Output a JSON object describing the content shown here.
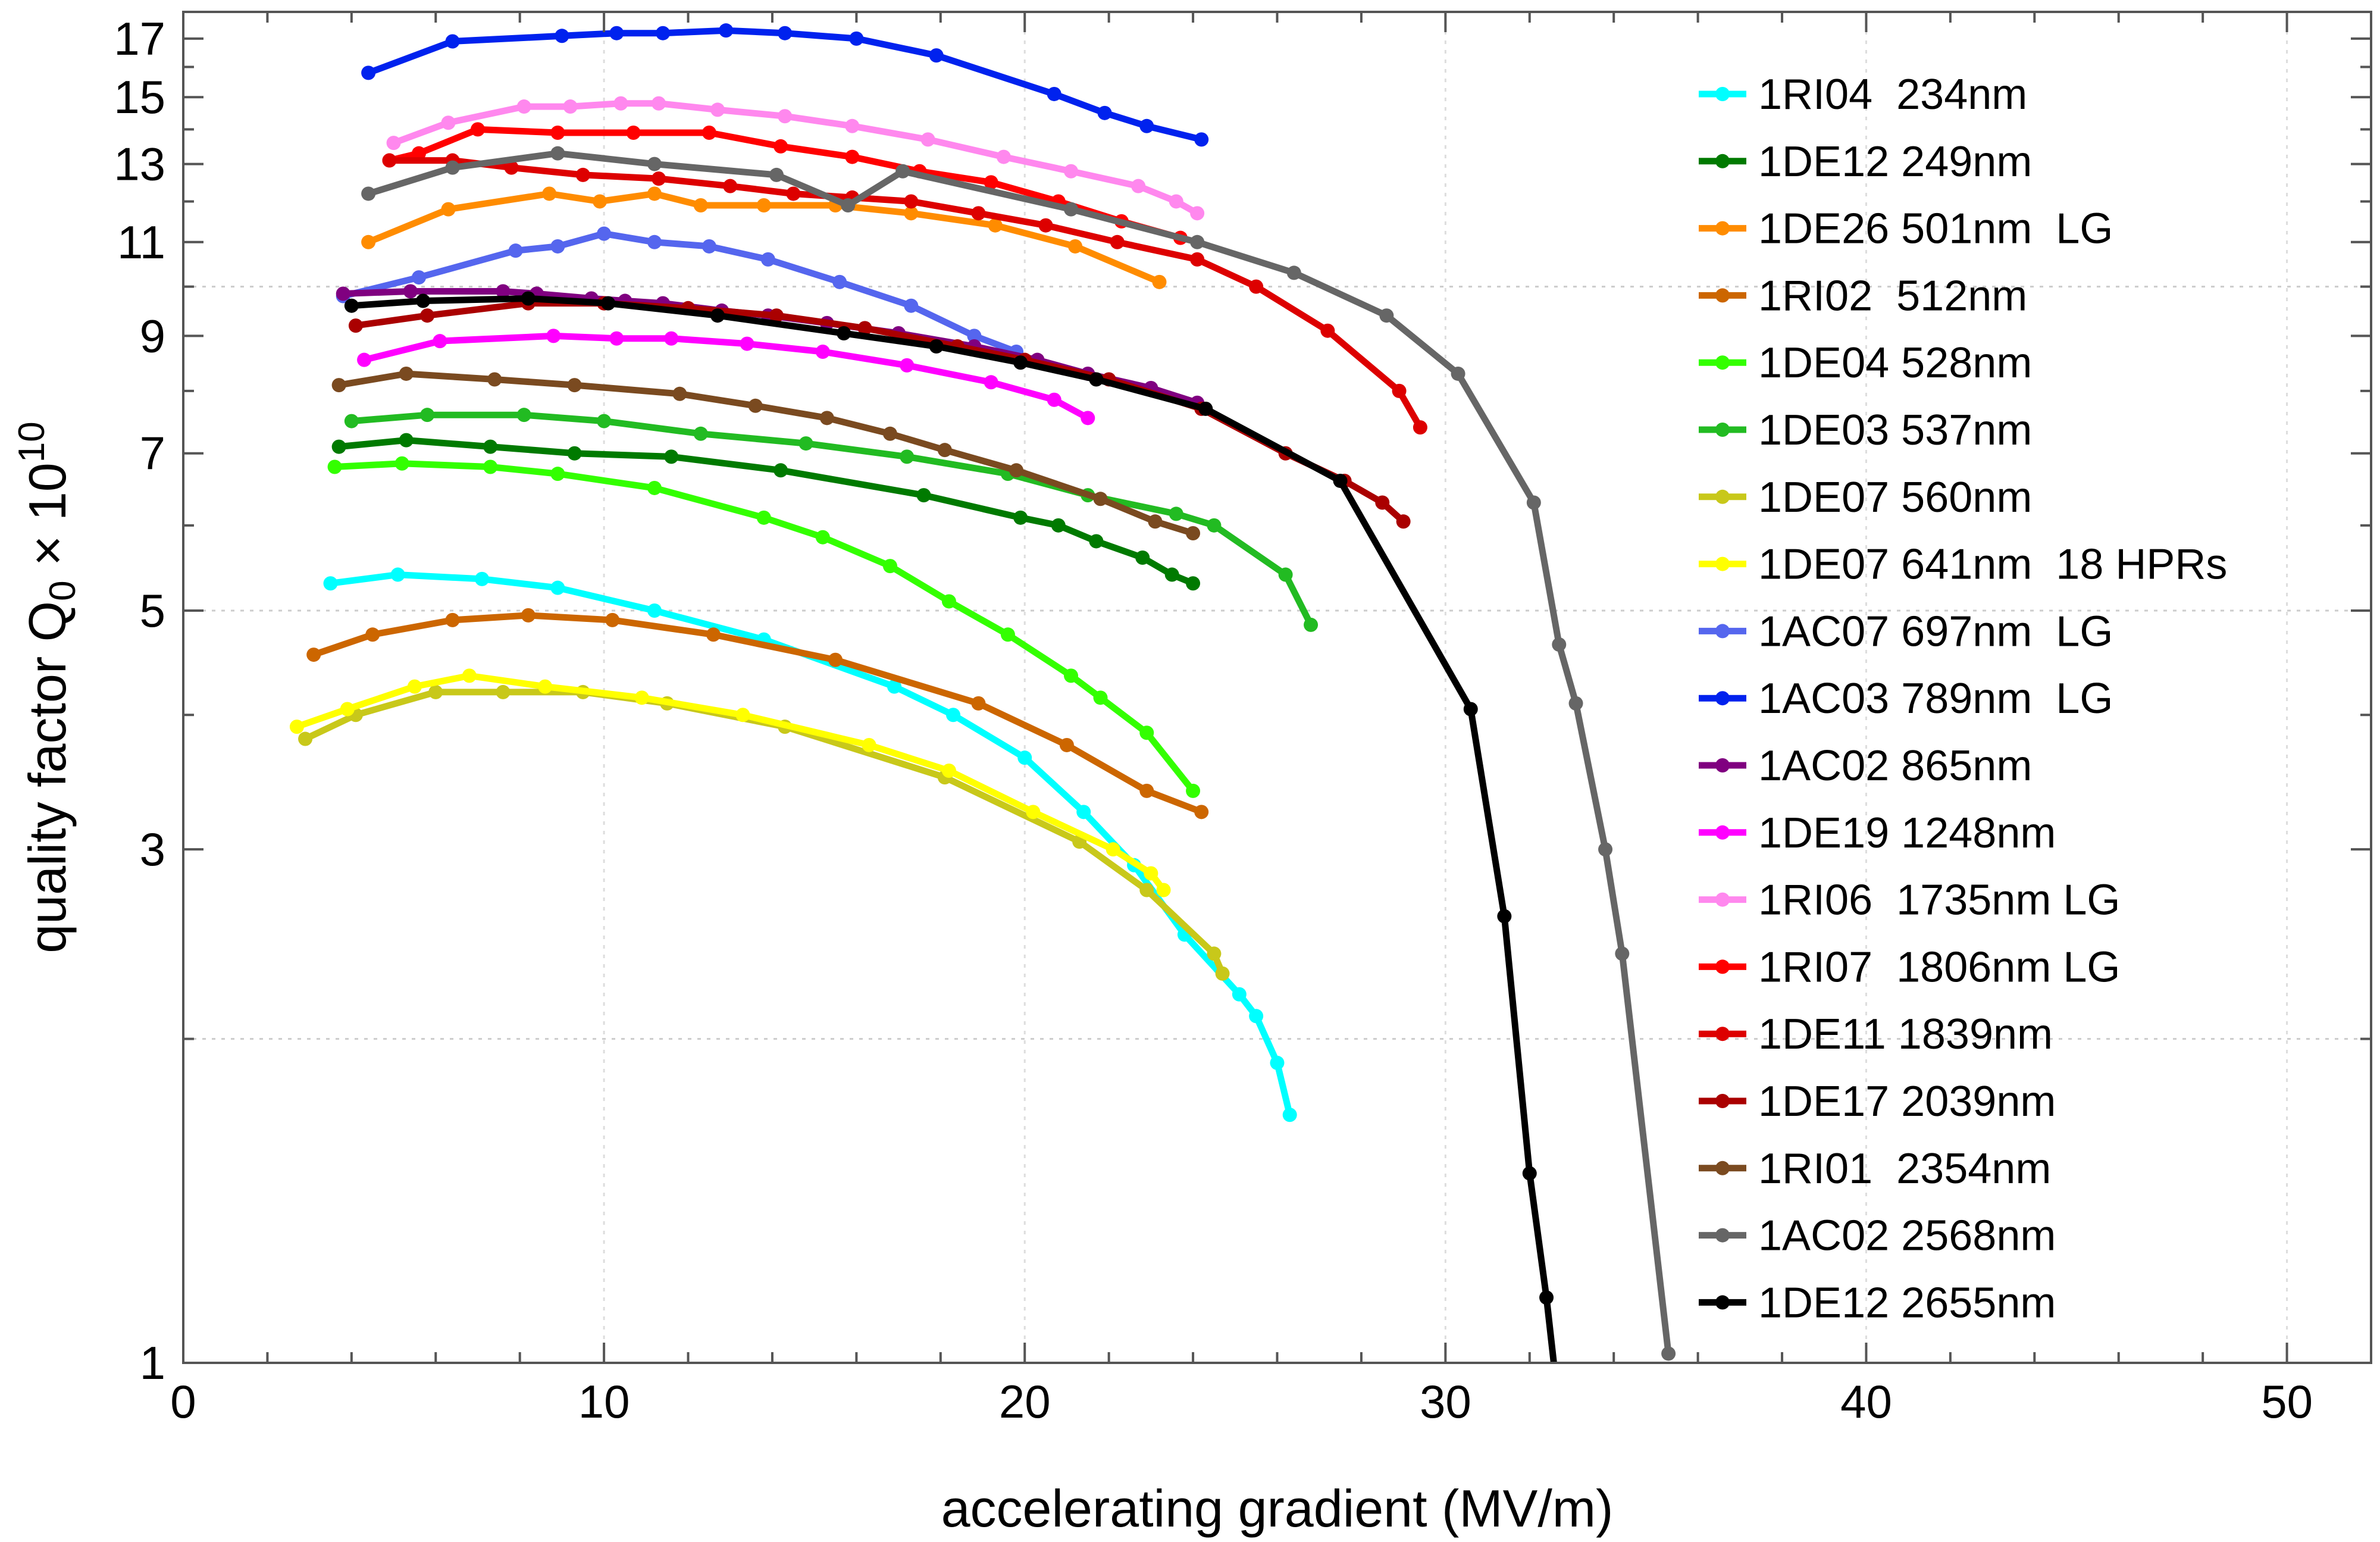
{
  "chart_data": {
    "type": "line",
    "xlabel": "accelerating gradient (MV/m)",
    "ylabel": {
      "prefix": "quality factor Q",
      "subscript": "0",
      "times": " × 10",
      "superscript": "10"
    },
    "x_scale": "linear",
    "y_scale": "log",
    "xlim": [
      0,
      52
    ],
    "ylim": [
      1,
      18
    ],
    "x_ticks": [
      0,
      10,
      20,
      30,
      40,
      50
    ],
    "x_tick_labels": [
      "0",
      "10",
      "20",
      "30",
      "40",
      "50"
    ],
    "y_ticks": [
      1,
      3,
      5,
      7,
      9,
      11,
      13,
      15,
      17
    ],
    "y_tick_labels": [
      "1",
      "3",
      "5",
      "7",
      "9",
      "11",
      "13",
      "15",
      "17"
    ],
    "grid": "dotted at y = 2, 5, 10",
    "legend_position": "top-right",
    "series": [
      {
        "name": "1RI04  234nm",
        "color": "#00ffff",
        "x": [
          3.5,
          5.1,
          7.1,
          8.9,
          11.2,
          13.8,
          16.9,
          18.3,
          20.0,
          21.4,
          22.6,
          23.8,
          25.1,
          25.5,
          26.0,
          26.3
        ],
        "y": [
          5.3,
          5.4,
          5.35,
          5.25,
          5.0,
          4.7,
          4.25,
          4.0,
          3.65,
          3.25,
          2.9,
          2.5,
          2.2,
          2.1,
          1.9,
          1.7
        ]
      },
      {
        "name": "1DE12 249nm",
        "color": "#007a00",
        "x": [
          3.7,
          5.3,
          7.3,
          9.3,
          11.6,
          14.2,
          17.6,
          19.9,
          20.8,
          21.7,
          22.8,
          23.5,
          24.0
        ],
        "y": [
          7.1,
          7.2,
          7.1,
          7.0,
          6.95,
          6.75,
          6.4,
          6.1,
          6.0,
          5.8,
          5.6,
          5.4,
          5.3
        ]
      },
      {
        "name": "1DE26 501nm  LG",
        "color": "#ff8c00",
        "x": [
          4.4,
          6.3,
          8.7,
          9.9,
          11.2,
          12.3,
          13.8,
          15.5,
          17.3,
          19.3,
          21.2,
          23.2
        ],
        "y": [
          11.0,
          11.8,
          12.2,
          12.0,
          12.2,
          11.9,
          11.9,
          11.9,
          11.7,
          11.4,
          10.9,
          10.1
        ]
      },
      {
        "name": "1RI02  512nm",
        "color": "#cc6600",
        "x": [
          3.1,
          4.5,
          6.4,
          8.2,
          10.2,
          12.6,
          15.5,
          18.9,
          21.0,
          22.9,
          24.2
        ],
        "y": [
          4.55,
          4.75,
          4.9,
          4.95,
          4.9,
          4.75,
          4.5,
          4.1,
          3.75,
          3.4,
          3.25
        ]
      },
      {
        "name": "1DE04 528nm",
        "color": "#33ff00",
        "x": [
          3.6,
          5.2,
          7.3,
          8.9,
          11.2,
          13.8,
          15.2,
          16.8,
          18.2,
          19.6,
          21.1,
          21.8,
          22.9,
          24.0
        ],
        "y": [
          6.8,
          6.85,
          6.8,
          6.7,
          6.5,
          6.1,
          5.85,
          5.5,
          5.1,
          4.75,
          4.35,
          4.15,
          3.85,
          3.4
        ]
      },
      {
        "name": "1DE03 537nm",
        "color": "#22bb22",
        "x": [
          4.0,
          5.8,
          8.1,
          10.0,
          12.3,
          14.8,
          17.2,
          19.6,
          21.5,
          23.6,
          24.5,
          26.2,
          26.8
        ],
        "y": [
          7.5,
          7.6,
          7.6,
          7.5,
          7.3,
          7.15,
          6.95,
          6.7,
          6.4,
          6.15,
          6.0,
          5.4,
          4.85
        ]
      },
      {
        "name": "1DE07 560nm",
        "color": "#c8c81a",
        "x": [
          2.9,
          4.1,
          6.0,
          7.6,
          9.5,
          11.5,
          14.3,
          18.1,
          21.3,
          22.9,
          24.5,
          24.7
        ],
        "y": [
          3.8,
          4.0,
          4.2,
          4.2,
          4.2,
          4.1,
          3.9,
          3.5,
          3.05,
          2.75,
          2.4,
          2.3
        ]
      },
      {
        "name": "1DE07 641nm  18 HPRs",
        "color": "#ffff00",
        "x": [
          2.7,
          3.9,
          5.5,
          6.8,
          8.6,
          10.9,
          13.3,
          16.3,
          18.2,
          20.2,
          22.1,
          23.0,
          23.3
        ],
        "y": [
          3.9,
          4.05,
          4.25,
          4.35,
          4.25,
          4.15,
          4.0,
          3.75,
          3.55,
          3.25,
          3.0,
          2.85,
          2.75
        ]
      },
      {
        "name": "1AC07 697nm  LG",
        "color": "#5566ee",
        "x": [
          3.8,
          5.6,
          7.9,
          8.9,
          10.0,
          11.2,
          12.5,
          13.9,
          15.6,
          17.3,
          18.8,
          19.8
        ],
        "y": [
          9.8,
          10.2,
          10.8,
          10.9,
          11.2,
          11.0,
          10.9,
          10.6,
          10.1,
          9.6,
          9.0,
          8.7
        ]
      },
      {
        "name": "1AC03 789nm  LG",
        "color": "#0022ee",
        "x": [
          4.4,
          6.4,
          9.0,
          10.3,
          11.4,
          12.9,
          14.3,
          16.0,
          17.9,
          20.7,
          21.9,
          22.9,
          24.2
        ],
        "y": [
          15.8,
          16.9,
          17.1,
          17.2,
          17.2,
          17.3,
          17.2,
          17.0,
          16.4,
          15.1,
          14.5,
          14.1,
          13.7
        ]
      },
      {
        "name": "1AC02 865nm",
        "color": "#800080",
        "x": [
          3.8,
          5.4,
          7.6,
          8.4,
          9.7,
          10.5,
          11.4,
          12.8,
          13.9,
          15.3,
          17.0,
          18.8,
          20.3,
          21.5,
          23.0,
          24.1
        ],
        "y": [
          9.85,
          9.9,
          9.9,
          9.85,
          9.75,
          9.7,
          9.65,
          9.5,
          9.4,
          9.25,
          9.05,
          8.8,
          8.55,
          8.3,
          8.05,
          7.8
        ]
      },
      {
        "name": "1DE19 1248nm",
        "color": "#ff00ff",
        "x": [
          4.3,
          6.1,
          8.8,
          10.3,
          11.6,
          13.4,
          15.2,
          17.2,
          19.2,
          20.7,
          21.5
        ],
        "y": [
          8.55,
          8.9,
          9.0,
          8.95,
          8.95,
          8.85,
          8.7,
          8.45,
          8.15,
          7.85,
          7.55
        ]
      },
      {
        "name": "1RI06  1735nm LG",
        "color": "#ff88ee",
        "x": [
          5.0,
          6.3,
          8.1,
          9.2,
          10.4,
          11.3,
          12.7,
          14.3,
          15.9,
          17.7,
          19.5,
          21.1,
          22.7,
          23.6,
          24.1
        ],
        "y": [
          13.6,
          14.2,
          14.7,
          14.7,
          14.8,
          14.8,
          14.6,
          14.4,
          14.1,
          13.7,
          13.2,
          12.8,
          12.4,
          12.0,
          11.7
        ]
      },
      {
        "name": "1RI07  1806nm LG",
        "color": "#ff0000",
        "x": [
          4.9,
          5.6,
          7.0,
          8.9,
          10.7,
          12.5,
          14.2,
          15.9,
          17.5,
          19.2,
          20.8,
          22.3,
          23.7
        ],
        "y": [
          13.1,
          13.3,
          14.0,
          13.9,
          13.9,
          13.9,
          13.5,
          13.2,
          12.8,
          12.5,
          12.0,
          11.5,
          11.1
        ]
      },
      {
        "name": "1DE11 1839nm",
        "color": "#dd0000",
        "x": [
          4.9,
          6.4,
          7.8,
          9.5,
          11.3,
          13.0,
          14.5,
          15.9,
          17.3,
          18.9,
          20.5,
          22.2,
          24.1,
          25.5,
          27.2,
          28.9,
          29.4
        ],
        "y": [
          13.1,
          13.1,
          12.9,
          12.7,
          12.6,
          12.4,
          12.2,
          12.1,
          12.0,
          11.7,
          11.4,
          11.0,
          10.6,
          10.0,
          9.1,
          8.0,
          7.4
        ]
      },
      {
        "name": "1DE17 2039nm",
        "color": "#aa0000",
        "x": [
          4.1,
          5.8,
          8.2,
          10.0,
          12.0,
          14.1,
          16.2,
          18.4,
          20.0,
          22.0,
          24.2,
          26.2,
          27.6,
          28.5,
          29.0
        ],
        "y": [
          9.2,
          9.4,
          9.65,
          9.65,
          9.55,
          9.4,
          9.15,
          8.8,
          8.55,
          8.2,
          7.7,
          7.0,
          6.6,
          6.3,
          6.05
        ]
      },
      {
        "name": "1RI01  2354nm",
        "color": "#7a4a20",
        "x": [
          3.7,
          5.3,
          7.4,
          9.3,
          11.8,
          13.6,
          15.3,
          16.8,
          18.1,
          19.8,
          21.8,
          23.1,
          24.0
        ],
        "y": [
          8.1,
          8.3,
          8.2,
          8.1,
          7.95,
          7.75,
          7.55,
          7.3,
          7.05,
          6.75,
          6.35,
          6.05,
          5.9
        ]
      },
      {
        "name": "1AC02 2568nm",
        "color": "#666666",
        "x": [
          4.4,
          6.4,
          8.9,
          11.2,
          14.1,
          15.8,
          17.1,
          21.1,
          24.1,
          26.4,
          28.6,
          30.3,
          32.1,
          32.7,
          33.1,
          33.8,
          34.2,
          35.3
        ],
        "y": [
          12.2,
          12.9,
          13.3,
          13.0,
          12.7,
          11.9,
          12.8,
          11.8,
          11.0,
          10.3,
          9.4,
          8.3,
          6.3,
          4.65,
          4.1,
          3.0,
          2.4,
          1.02
        ]
      },
      {
        "name": "1DE12 2655nm",
        "color": "#000000",
        "x": [
          4.0,
          5.7,
          8.2,
          10.1,
          12.7,
          15.7,
          17.9,
          19.9,
          21.7,
          24.3,
          27.5,
          30.6,
          31.4,
          32.0,
          32.4,
          32.6
        ],
        "y": [
          9.6,
          9.7,
          9.75,
          9.65,
          9.4,
          9.05,
          8.8,
          8.5,
          8.2,
          7.7,
          6.6,
          4.05,
          2.6,
          1.5,
          1.15,
          0.98
        ]
      }
    ]
  }
}
